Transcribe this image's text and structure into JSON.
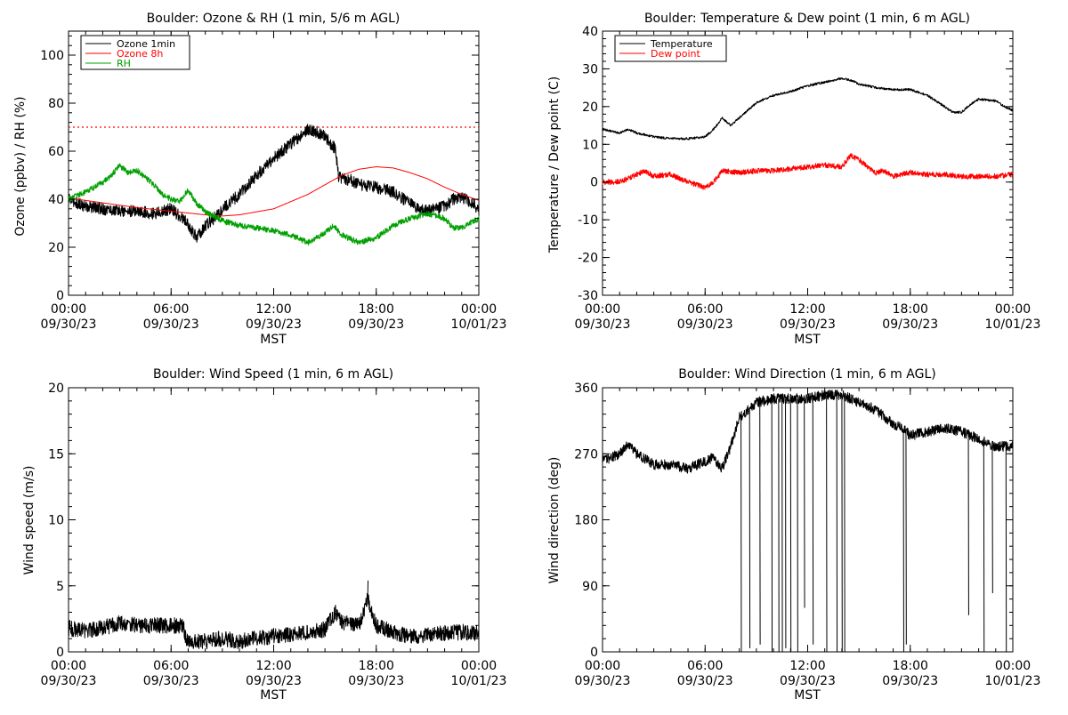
{
  "chart_data": [
    {
      "id": "ozone",
      "type": "line",
      "title": "Boulder: Ozone & RH (1 min, 5/6 m AGL)",
      "ylabel": "Ozone (ppbv) / RH (%)",
      "xlabel": "MST",
      "x_ticks": [
        {
          "time": "00:00",
          "date": "09/30/23"
        },
        {
          "time": "06:00",
          "date": "09/30/23"
        },
        {
          "time": "12:00",
          "date": "09/30/23"
        },
        {
          "time": "18:00",
          "date": "09/30/23"
        },
        {
          "time": "00:00",
          "date": "10/01/23"
        }
      ],
      "xlim_hours": [
        0,
        24
      ],
      "ylim": [
        0,
        110
      ],
      "y_ticks": [
        0,
        20,
        40,
        60,
        80,
        100
      ],
      "grid": false,
      "legend_position": "top-left",
      "reference_line": {
        "y": 70,
        "color": "#ff0000",
        "style": "dotted"
      },
      "series": [
        {
          "name": "Ozone 1min",
          "color": "#000000",
          "noise": 2.5,
          "points": [
            [
              0,
              40
            ],
            [
              1,
              37
            ],
            [
              2,
              36
            ],
            [
              3,
              35
            ],
            [
              4,
              35
            ],
            [
              5,
              34
            ],
            [
              6,
              36
            ],
            [
              6.8,
              31
            ],
            [
              7.5,
              24
            ],
            [
              8,
              29
            ],
            [
              8.5,
              32
            ],
            [
              9,
              36
            ],
            [
              10,
              42
            ],
            [
              11,
              50
            ],
            [
              12,
              57
            ],
            [
              13,
              63
            ],
            [
              14,
              69
            ],
            [
              14.5,
              68
            ],
            [
              15,
              66
            ],
            [
              15.6,
              61
            ],
            [
              15.8,
              49
            ],
            [
              16.5,
              48
            ],
            [
              17,
              46
            ],
            [
              18,
              45
            ],
            [
              19,
              43
            ],
            [
              20,
              38
            ],
            [
              21,
              35
            ],
            [
              22,
              37
            ],
            [
              22.5,
              40
            ],
            [
              23,
              41
            ],
            [
              24,
              36
            ]
          ]
        },
        {
          "name": "Ozone 8h",
          "color": "#ff0000",
          "noise": 0,
          "points": [
            [
              0,
              40.5
            ],
            [
              2,
              38.5
            ],
            [
              4,
              36.5
            ],
            [
              6,
              35
            ],
            [
              8,
              33.5
            ],
            [
              9,
              33
            ],
            [
              10,
              33.5
            ],
            [
              12,
              36
            ],
            [
              14,
              42
            ],
            [
              16,
              50
            ],
            [
              17,
              52.5
            ],
            [
              18,
              53.5
            ],
            [
              19,
              53
            ],
            [
              20,
              51
            ],
            [
              21,
              48.5
            ],
            [
              22,
              45
            ],
            [
              23,
              42
            ],
            [
              24,
              39.5
            ]
          ]
        },
        {
          "name": "RH",
          "color": "#00a000",
          "noise": 1.2,
          "points": [
            [
              0,
              40
            ],
            [
              1,
              43
            ],
            [
              2,
              47
            ],
            [
              2.5,
              50
            ],
            [
              3,
              54
            ],
            [
              3.5,
              51
            ],
            [
              4,
              52
            ],
            [
              4.5,
              49
            ],
            [
              5,
              46
            ],
            [
              5.5,
              42
            ],
            [
              6,
              40
            ],
            [
              6.5,
              39
            ],
            [
              7,
              44
            ],
            [
              7.5,
              38
            ],
            [
              8,
              35
            ],
            [
              9,
              31
            ],
            [
              10,
              29
            ],
            [
              11,
              28
            ],
            [
              12,
              27
            ],
            [
              13,
              25
            ],
            [
              14,
              22
            ],
            [
              15,
              26
            ],
            [
              15.5,
              29
            ],
            [
              16,
              25
            ],
            [
              17,
              22
            ],
            [
              18,
              24
            ],
            [
              19,
              29
            ],
            [
              20,
              32
            ],
            [
              21,
              34
            ],
            [
              21.5,
              33
            ],
            [
              22,
              32
            ],
            [
              22.5,
              28
            ],
            [
              23,
              28
            ],
            [
              24,
              32
            ]
          ]
        }
      ]
    },
    {
      "id": "temp",
      "type": "line",
      "title": "Boulder: Temperature & Dew point (1 min, 6 m AGL)",
      "ylabel": "Temperature / Dew point (C)",
      "xlabel": "MST",
      "x_ticks": [
        {
          "time": "00:00",
          "date": "09/30/23"
        },
        {
          "time": "06:00",
          "date": "09/30/23"
        },
        {
          "time": "12:00",
          "date": "09/30/23"
        },
        {
          "time": "18:00",
          "date": "09/30/23"
        },
        {
          "time": "00:00",
          "date": "10/01/23"
        }
      ],
      "xlim_hours": [
        0,
        24
      ],
      "ylim": [
        -30,
        40
      ],
      "y_ticks": [
        -30,
        -20,
        -10,
        0,
        10,
        20,
        30,
        40
      ],
      "grid": false,
      "legend_position": "top-left",
      "series": [
        {
          "name": "Temperature",
          "color": "#000000",
          "noise": 0.3,
          "points": [
            [
              0,
              14
            ],
            [
              1,
              13
            ],
            [
              1.5,
              14
            ],
            [
              2,
              13
            ],
            [
              3,
              12
            ],
            [
              4,
              11.5
            ],
            [
              5,
              11.5
            ],
            [
              6,
              12
            ],
            [
              6.5,
              14
            ],
            [
              7,
              17
            ],
            [
              7.5,
              15
            ],
            [
              8,
              17
            ],
            [
              9,
              21
            ],
            [
              10,
              23
            ],
            [
              11,
              24
            ],
            [
              12,
              25.5
            ],
            [
              13,
              26.5
            ],
            [
              14,
              27.5
            ],
            [
              14.5,
              27
            ],
            [
              15,
              26
            ],
            [
              16,
              25
            ],
            [
              17,
              24.5
            ],
            [
              18,
              24.5
            ],
            [
              19,
              23
            ],
            [
              20,
              20
            ],
            [
              20.5,
              18.5
            ],
            [
              21,
              18.5
            ],
            [
              21.5,
              20.5
            ],
            [
              22,
              22
            ],
            [
              23,
              21.5
            ],
            [
              23.5,
              20
            ],
            [
              24,
              19
            ]
          ]
        },
        {
          "name": "Dew point",
          "color": "#ff0000",
          "noise": 0.7,
          "points": [
            [
              0,
              0
            ],
            [
              1,
              0
            ],
            [
              2,
              2
            ],
            [
              2.5,
              3
            ],
            [
              3,
              1.5
            ],
            [
              4,
              2
            ],
            [
              5,
              0
            ],
            [
              6,
              -1.5
            ],
            [
              6.5,
              0
            ],
            [
              7,
              3
            ],
            [
              8,
              2.5
            ],
            [
              9,
              3
            ],
            [
              10,
              3
            ],
            [
              11,
              3.5
            ],
            [
              12,
              4
            ],
            [
              13,
              4.5
            ],
            [
              14,
              4
            ],
            [
              14.5,
              7
            ],
            [
              15,
              6
            ],
            [
              15.5,
              4
            ],
            [
              16,
              2.5
            ],
            [
              16.5,
              3
            ],
            [
              17,
              1.5
            ],
            [
              17.5,
              2
            ],
            [
              18,
              2.5
            ],
            [
              19,
              2
            ],
            [
              20,
              2
            ],
            [
              21,
              1.5
            ],
            [
              22,
              1.5
            ],
            [
              23,
              1.5
            ],
            [
              24,
              2
            ]
          ]
        }
      ]
    },
    {
      "id": "wind",
      "type": "line",
      "title": "Boulder: Wind Speed (1 min, 6 m AGL)",
      "ylabel": "Wind speed (m/s)",
      "xlabel": "MST",
      "x_ticks": [
        {
          "time": "00:00",
          "date": "09/30/23"
        },
        {
          "time": "06:00",
          "date": "09/30/23"
        },
        {
          "time": "12:00",
          "date": "09/30/23"
        },
        {
          "time": "18:00",
          "date": "09/30/23"
        },
        {
          "time": "00:00",
          "date": "10/01/23"
        }
      ],
      "xlim_hours": [
        0,
        24
      ],
      "ylim": [
        0,
        20
      ],
      "y_ticks": [
        0,
        5,
        10,
        15,
        20
      ],
      "grid": false,
      "series": [
        {
          "color": "#000000",
          "noise": 0.6,
          "points": [
            [
              0,
              1.8
            ],
            [
              1,
              1.6
            ],
            [
              2,
              1.8
            ],
            [
              3,
              2.2
            ],
            [
              4,
              2.0
            ],
            [
              5,
              2.0
            ],
            [
              6,
              2.0
            ],
            [
              6.7,
              2.0
            ],
            [
              6.9,
              0.8
            ],
            [
              8,
              0.8
            ],
            [
              9,
              1.0
            ],
            [
              10,
              0.8
            ],
            [
              11,
              1.0
            ],
            [
              12,
              1.2
            ],
            [
              13,
              1.3
            ],
            [
              14,
              1.5
            ],
            [
              15,
              1.7
            ],
            [
              15.6,
              3.0
            ],
            [
              16,
              2.2
            ],
            [
              17,
              2.0
            ],
            [
              17.5,
              4.0
            ],
            [
              18,
              2.0
            ],
            [
              19,
              1.5
            ],
            [
              20,
              1.2
            ],
            [
              21,
              1.3
            ],
            [
              22,
              1.4
            ],
            [
              23,
              1.5
            ],
            [
              24,
              1.4
            ]
          ]
        }
      ],
      "spikes": [
        [
          17.5,
          5.4
        ],
        [
          15.6,
          3.2
        ]
      ]
    },
    {
      "id": "winddir",
      "type": "line",
      "title": "Boulder: Wind Direction (1 min, 6 m AGL)",
      "ylabel": "Wind direction (deg)",
      "xlabel": "MST",
      "x_ticks": [
        {
          "time": "00:00",
          "date": "09/30/23"
        },
        {
          "time": "06:00",
          "date": "09/30/23"
        },
        {
          "time": "12:00",
          "date": "09/30/23"
        },
        {
          "time": "18:00",
          "date": "09/30/23"
        },
        {
          "time": "00:00",
          "date": "10/01/23"
        }
      ],
      "xlim_hours": [
        0,
        24
      ],
      "ylim": [
        0,
        360
      ],
      "y_ticks": [
        0,
        90,
        180,
        270,
        360
      ],
      "grid": false,
      "series": [
        {
          "color": "#000000",
          "noise": 7,
          "points": [
            [
              0,
              260
            ],
            [
              1,
              270
            ],
            [
              1.5,
              285
            ],
            [
              2,
              270
            ],
            [
              3,
              255
            ],
            [
              4,
              255
            ],
            [
              5,
              250
            ],
            [
              6,
              260
            ],
            [
              6.5,
              265
            ],
            [
              7,
              250
            ],
            [
              7.5,
              280
            ],
            [
              8,
              320
            ],
            [
              9,
              340
            ],
            [
              10,
              345
            ],
            [
              11,
              345
            ],
            [
              12,
              345
            ],
            [
              13,
              350
            ],
            [
              14,
              350
            ],
            [
              15,
              340
            ],
            [
              16,
              330
            ],
            [
              17,
              310
            ],
            [
              17.5,
              305
            ],
            [
              18,
              295
            ],
            [
              19,
              300
            ],
            [
              20,
              305
            ],
            [
              21,
              300
            ],
            [
              22,
              290
            ],
            [
              23,
              280
            ],
            [
              24,
              280
            ]
          ]
        }
      ],
      "spikes": [
        [
          8.1,
          0
        ],
        [
          8.6,
          5
        ],
        [
          9.2,
          10
        ],
        [
          9.9,
          0
        ],
        [
          10.3,
          0
        ],
        [
          10.5,
          0
        ],
        [
          10.7,
          5
        ],
        [
          11.0,
          0
        ],
        [
          11.4,
          0
        ],
        [
          11.8,
          60
        ],
        [
          12.3,
          10
        ],
        [
          13.1,
          0
        ],
        [
          13.7,
          0
        ],
        [
          14.0,
          0
        ],
        [
          14.15,
          0
        ],
        [
          17.6,
          0
        ],
        [
          17.75,
          10
        ],
        [
          21.4,
          50
        ],
        [
          22.3,
          0
        ],
        [
          22.8,
          80
        ],
        [
          23.6,
          0
        ]
      ]
    }
  ]
}
